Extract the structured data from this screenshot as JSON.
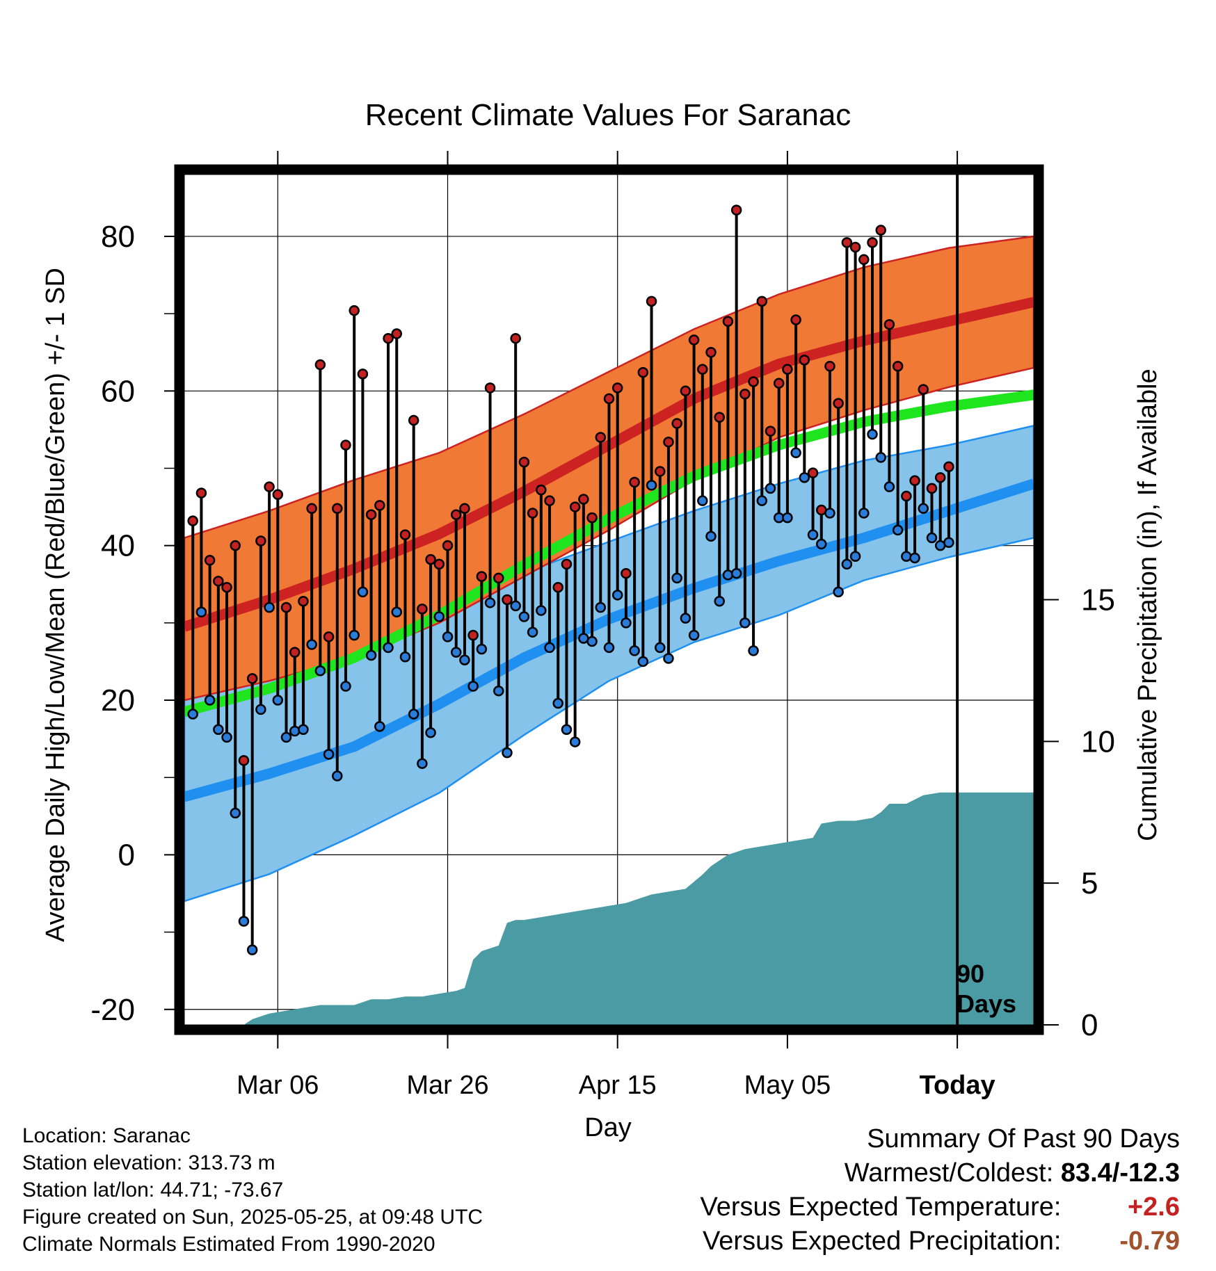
{
  "chart_data": {
    "type": "line",
    "title": "Recent Climate Values For Saranac",
    "xlabel": "Day",
    "ylabel": "Average Daily High/Low/Mean (Red/Blue/Green) +/- 1 SD",
    "y2label": "Cumulative Precipitation (in), If Available",
    "ylim": [
      -22,
      88
    ],
    "y2lim": [
      0,
      30
    ],
    "yticks": [
      "-20",
      "0",
      "20",
      "40",
      "60",
      "80"
    ],
    "y2ticks": [
      "0",
      "5",
      "10",
      "15"
    ],
    "xlim": [
      0,
      100
    ],
    "xticks": [
      {
        "x": 11,
        "label": "Mar 06"
      },
      {
        "x": 31,
        "label": "Mar 26"
      },
      {
        "x": 51,
        "label": "Apr 15"
      },
      {
        "x": 71,
        "label": "May 05"
      },
      {
        "x": 91,
        "label": "Today"
      }
    ],
    "today_x": 91,
    "today_label_1": "90",
    "today_label_2": "Days",
    "grid": true,
    "days": [
      1,
      2,
      3,
      4,
      5,
      6,
      7,
      8,
      9,
      10,
      11,
      12,
      13,
      14,
      15,
      16,
      17,
      18,
      19,
      20,
      21,
      22,
      23,
      24,
      25,
      26,
      27,
      28,
      29,
      30,
      31,
      32,
      33,
      34,
      35,
      36,
      37,
      38,
      39,
      40,
      41,
      42,
      43,
      44,
      45,
      46,
      47,
      48,
      49,
      50,
      51,
      52,
      53,
      54,
      55,
      56,
      57,
      58,
      59,
      60,
      61,
      62,
      63,
      64,
      65,
      66,
      67,
      68,
      69,
      70,
      71,
      72,
      73,
      74,
      75,
      76,
      77,
      78,
      79,
      80,
      81,
      82,
      83,
      84,
      85,
      86,
      87,
      88,
      89,
      90
    ],
    "series": [
      {
        "name": "High",
        "color": "#cc2222",
        "values": [
          43.2,
          46.8,
          38.1,
          35.4,
          34.6,
          40.0,
          12.2,
          22.8,
          40.6,
          47.6,
          46.6,
          32.0,
          26.2,
          32.8,
          44.8,
          63.4,
          28.2,
          44.8,
          53.0,
          70.4,
          62.2,
          44.0,
          45.2,
          66.8,
          67.4,
          41.4,
          56.2,
          31.8,
          38.2,
          37.6,
          40.0,
          44.0,
          44.8,
          28.4,
          36.0,
          60.4,
          35.8,
          33.0,
          66.8,
          50.8,
          44.2,
          47.2,
          45.8,
          34.6,
          37.6,
          45.0,
          46.0,
          43.6,
          54.0,
          59.0,
          60.4,
          36.4,
          48.2,
          62.4,
          71.6,
          49.6,
          53.4,
          55.8,
          60.0,
          66.6,
          62.8,
          65.0,
          56.6,
          69.0,
          83.4,
          59.6,
          61.2,
          71.6,
          54.8,
          61.0,
          62.8,
          69.2,
          64.0,
          49.4,
          44.6,
          63.2,
          58.4,
          79.2,
          78.6,
          77.0,
          79.2,
          80.8,
          68.6,
          63.2,
          46.4,
          48.4,
          60.2,
          47.4,
          48.8,
          50.2
        ]
      },
      {
        "name": "Low",
        "color": "#2277cc",
        "values": [
          18.2,
          31.4,
          20.0,
          16.2,
          15.2,
          5.4,
          -8.6,
          -12.3,
          18.8,
          32.0,
          20.0,
          15.2,
          16.0,
          16.2,
          27.2,
          23.8,
          13.0,
          10.2,
          21.8,
          28.4,
          34.0,
          25.8,
          16.6,
          26.8,
          31.4,
          25.6,
          18.2,
          11.8,
          15.8,
          30.8,
          28.2,
          26.2,
          25.2,
          21.8,
          26.6,
          32.6,
          21.2,
          13.2,
          32.2,
          30.8,
          28.8,
          31.6,
          26.8,
          19.6,
          16.2,
          14.6,
          28.0,
          27.6,
          32.0,
          26.8,
          33.6,
          30.0,
          26.4,
          25.0,
          47.8,
          26.8,
          25.4,
          35.8,
          30.6,
          28.4,
          45.8,
          41.2,
          32.8,
          36.2,
          36.4,
          30.0,
          26.4,
          45.8,
          47.4,
          43.6,
          43.6,
          52.0,
          48.8,
          41.4,
          40.2,
          44.2,
          34.0,
          37.6,
          38.6,
          44.2,
          54.4,
          51.4,
          47.6,
          42.0,
          38.6,
          38.4,
          44.8,
          41.0,
          40.0,
          40.4
        ]
      }
    ],
    "normals": {
      "x": [
        0,
        10,
        20,
        30,
        40,
        50,
        60,
        70,
        80,
        90,
        100
      ],
      "high_mean": [
        29.5,
        33.0,
        37.0,
        41.5,
        47.0,
        53.0,
        59.0,
        63.5,
        66.5,
        69.0,
        71.5
      ],
      "high_upper": [
        41.0,
        44.5,
        48.5,
        52.0,
        57.0,
        62.5,
        68.0,
        72.5,
        76.0,
        78.5,
        80.0
      ],
      "high_lower": [
        20.0,
        22.5,
        25.5,
        30.0,
        36.0,
        42.0,
        48.5,
        54.0,
        57.5,
        60.5,
        63.0
      ],
      "low_mean": [
        7.5,
        10.5,
        14.0,
        19.5,
        25.5,
        30.5,
        34.5,
        38.0,
        41.0,
        44.5,
        48.0
      ],
      "low_upper": [
        22.0,
        24.5,
        28.0,
        32.0,
        36.5,
        40.5,
        44.5,
        48.0,
        51.0,
        53.0,
        55.5
      ],
      "low_lower": [
        -6.0,
        -2.5,
        2.5,
        8.0,
        15.5,
        22.5,
        27.5,
        31.0,
        35.5,
        38.5,
        41.0
      ],
      "mean": [
        18.5,
        21.5,
        25.5,
        31.0,
        37.5,
        43.5,
        49.0,
        53.0,
        56.0,
        58.0,
        59.5
      ]
    },
    "precip": {
      "x": [
        0,
        7,
        8,
        10,
        12,
        14,
        16,
        18,
        20,
        22,
        24,
        26,
        28,
        30,
        32,
        33,
        34,
        35,
        37,
        38,
        39,
        40,
        42,
        44,
        46,
        48,
        50,
        52,
        54,
        55,
        57,
        59,
        61,
        62,
        63,
        64,
        66,
        68,
        70,
        72,
        74,
        75,
        77,
        79,
        81,
        82,
        83,
        85,
        87,
        89,
        90
      ],
      "values": [
        0,
        0,
        0.2,
        0.4,
        0.5,
        0.6,
        0.7,
        0.7,
        0.7,
        0.9,
        0.9,
        1.0,
        1.0,
        1.1,
        1.2,
        1.3,
        2.3,
        2.6,
        2.8,
        3.6,
        3.7,
        3.7,
        3.8,
        3.9,
        4.0,
        4.1,
        4.2,
        4.3,
        4.5,
        4.6,
        4.7,
        4.8,
        5.3,
        5.6,
        5.8,
        6.0,
        6.2,
        6.3,
        6.4,
        6.5,
        6.6,
        7.1,
        7.2,
        7.2,
        7.3,
        7.5,
        7.8,
        7.8,
        8.1,
        8.2,
        8.2
      ]
    },
    "colors": {
      "high_band": "#f07a35",
      "high_mean": "#cc2222",
      "low_band": "#85c3ea",
      "low_mean": "#1f8ff0",
      "mean": "#1fe51f",
      "precip": "#4a9ba3",
      "high_dot": "#c42222",
      "low_dot": "#2a7cd8"
    }
  },
  "info": {
    "location": "Location: Saranac",
    "elevation": "Station elevation: 313.73 m",
    "latlon": "Station lat/lon: 44.71; -73.67",
    "created": "Figure created on Sun, 2025-05-25, at 09:48 UTC",
    "normals": "Climate Normals Estimated From 1990-2020"
  },
  "summary": {
    "title": "Summary Of Past 90 Days",
    "warm_cold_label": "Warmest/Coldest:",
    "warm_cold_value": "83.4/-12.3",
    "temp_label": "Versus Expected Temperature:",
    "temp_value": "+2.6",
    "temp_color": "#c42222",
    "precip_label": "Versus Expected Precipitation:",
    "precip_value": "-0.79",
    "precip_color": "#a0522d"
  }
}
